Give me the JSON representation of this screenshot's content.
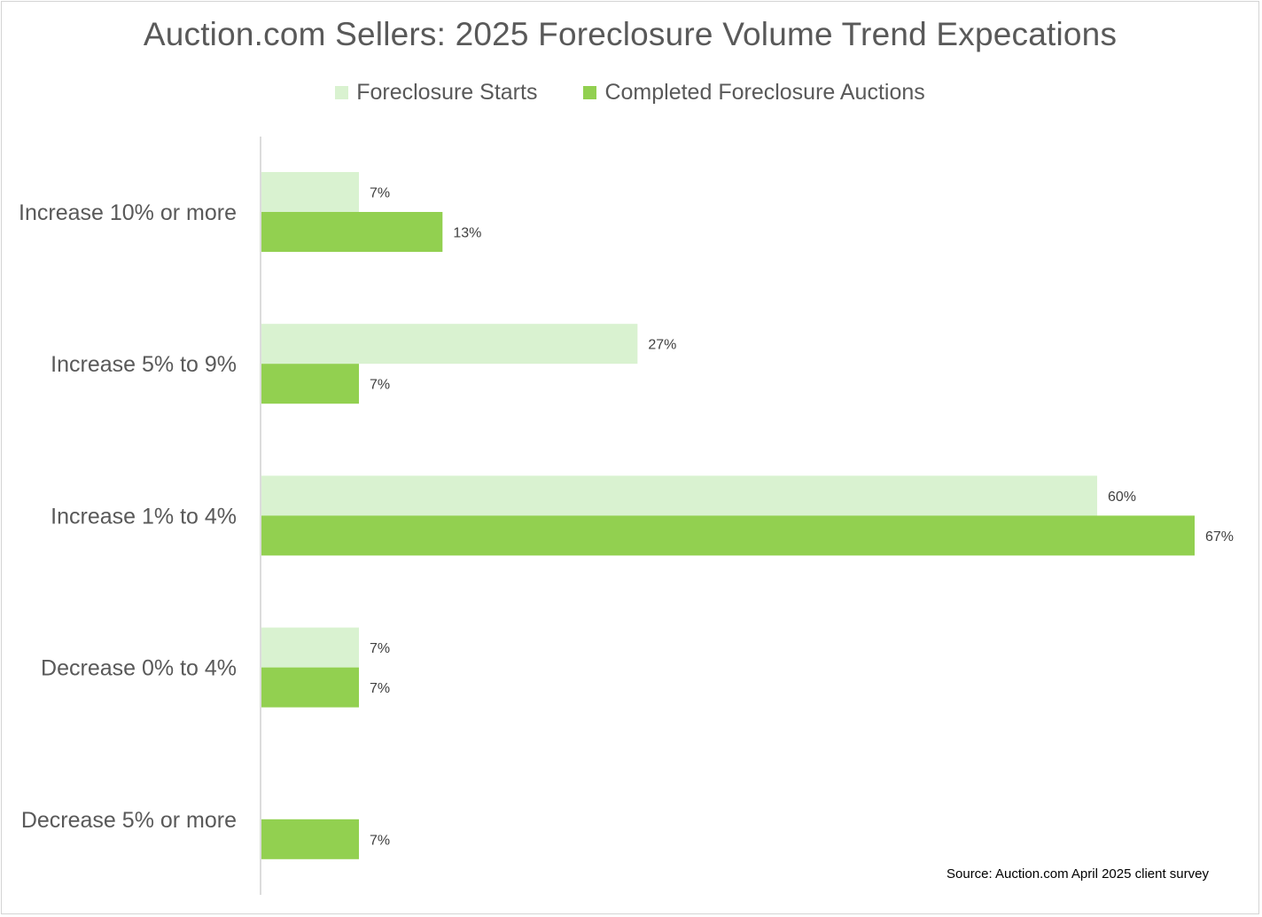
{
  "chart_data": {
    "type": "bar",
    "orientation": "horizontal",
    "title": "Auction.com Sellers: 2025 Foreclosure Volume Trend Expecations",
    "categories": [
      "Increase 10% or more",
      "Increase 5% to 9%",
      "Increase 1% to 4%",
      "Decrease 0% to 4%",
      "Decrease 5% or more"
    ],
    "series": [
      {
        "name": "Foreclosure Starts",
        "color": "#d9f2d0",
        "values": [
          7,
          27,
          60,
          7,
          0
        ],
        "labels": [
          "7%",
          "27%",
          "60%",
          "7%",
          ""
        ]
      },
      {
        "name": "Completed Foreclosure Auctions",
        "color": "#92d050",
        "values": [
          13,
          7,
          67,
          7,
          7
        ],
        "labels": [
          "13%",
          "7%",
          "67%",
          "7%",
          "7%"
        ]
      }
    ],
    "xlim": [
      0,
      67
    ],
    "xaxis_visible": false,
    "grid": false,
    "legend_position": "top",
    "source": "Source: Auction.com April 2025 client survey"
  }
}
